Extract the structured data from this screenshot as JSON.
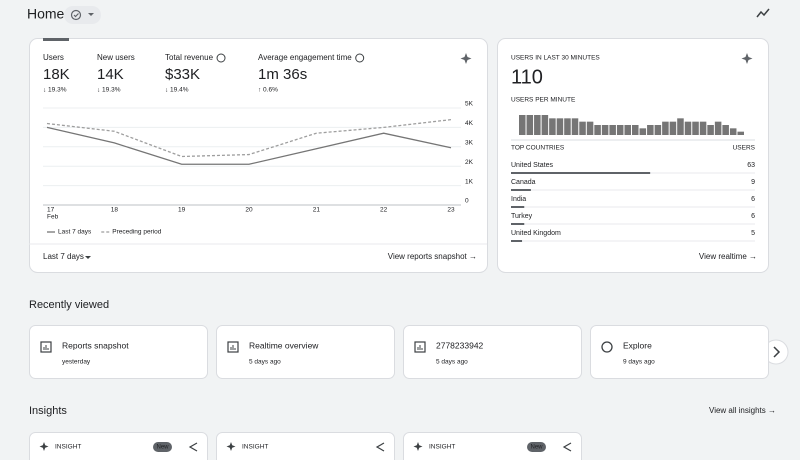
{
  "header": {
    "title": "Home"
  },
  "overview": {
    "metrics": [
      {
        "label": "Users",
        "value": "18K",
        "change": "↓ 19.3%"
      },
      {
        "label": "New users",
        "value": "14K",
        "change": "↓ 19.3%"
      },
      {
        "label": "Total revenue",
        "value": "$33K",
        "change": "↓ 19.4%"
      },
      {
        "label": "Average engagement time",
        "value": "1m 36s",
        "change": "↑ 0.6%"
      }
    ],
    "chart_data": {
      "type": "line",
      "x": [
        "17",
        "18",
        "19",
        "20",
        "21",
        "22",
        "23"
      ],
      "x_sublabel": "Feb",
      "ylim": [
        0,
        5000
      ],
      "yticks": [
        0,
        {
          "value": 1000,
          "label": "1K"
        },
        {
          "value": 2000,
          "label": "2K"
        },
        {
          "value": 3000,
          "label": "3K"
        },
        {
          "value": 4000,
          "label": "4K"
        },
        {
          "value": 5000,
          "label": "5K"
        }
      ],
      "series": [
        {
          "name": "Last 7 days",
          "color": "#757575",
          "dashed": false,
          "values": [
            4000,
            3200,
            2100,
            2100,
            2900,
            3700,
            2950
          ]
        },
        {
          "name": "Preceding period",
          "color": "#9e9e9e",
          "dashed": true,
          "values": [
            4200,
            3800,
            2500,
            2600,
            3700,
            4000,
            4400
          ]
        }
      ]
    },
    "date_range": "Last 7 days",
    "link": "View reports snapshot →"
  },
  "realtime": {
    "title": "USERS IN LAST 30 MINUTES",
    "users": 110,
    "per_minute_label": "USERS PER MINUTE",
    "chart_data": {
      "type": "bar",
      "color": "#757575",
      "values": [
        6,
        6,
        6,
        6,
        5,
        5,
        5,
        5,
        4,
        4,
        3,
        3,
        3,
        3,
        3,
        3,
        2,
        3,
        3,
        4,
        4,
        5,
        4,
        4,
        4,
        3,
        4,
        3,
        2,
        1
      ]
    },
    "countries_header": "TOP COUNTRIES",
    "users_header": "USERS",
    "countries": [
      {
        "name": "United States",
        "users": 63
      },
      {
        "name": "Canada",
        "users": 9
      },
      {
        "name": "India",
        "users": 6
      },
      {
        "name": "Turkey",
        "users": 6
      },
      {
        "name": "United Kingdom",
        "users": 5
      }
    ],
    "link": "View realtime →"
  },
  "recently_viewed": {
    "title": "Recently viewed",
    "items": [
      {
        "title": "Reports snapshot",
        "subtitle": "yesterday"
      },
      {
        "title": "Realtime overview",
        "subtitle": "5 days ago"
      },
      {
        "title": "2778233942",
        "subtitle": "5 days ago"
      },
      {
        "title": "Explore",
        "subtitle": "9 days ago"
      }
    ]
  },
  "insights": {
    "title": "Insights",
    "link": "View all insights →",
    "items": [
      {
        "label": "INSIGHT",
        "badge": "New"
      },
      {
        "label": "INSIGHT"
      },
      {
        "label": "INSIGHT",
        "badge": "New"
      }
    ]
  }
}
